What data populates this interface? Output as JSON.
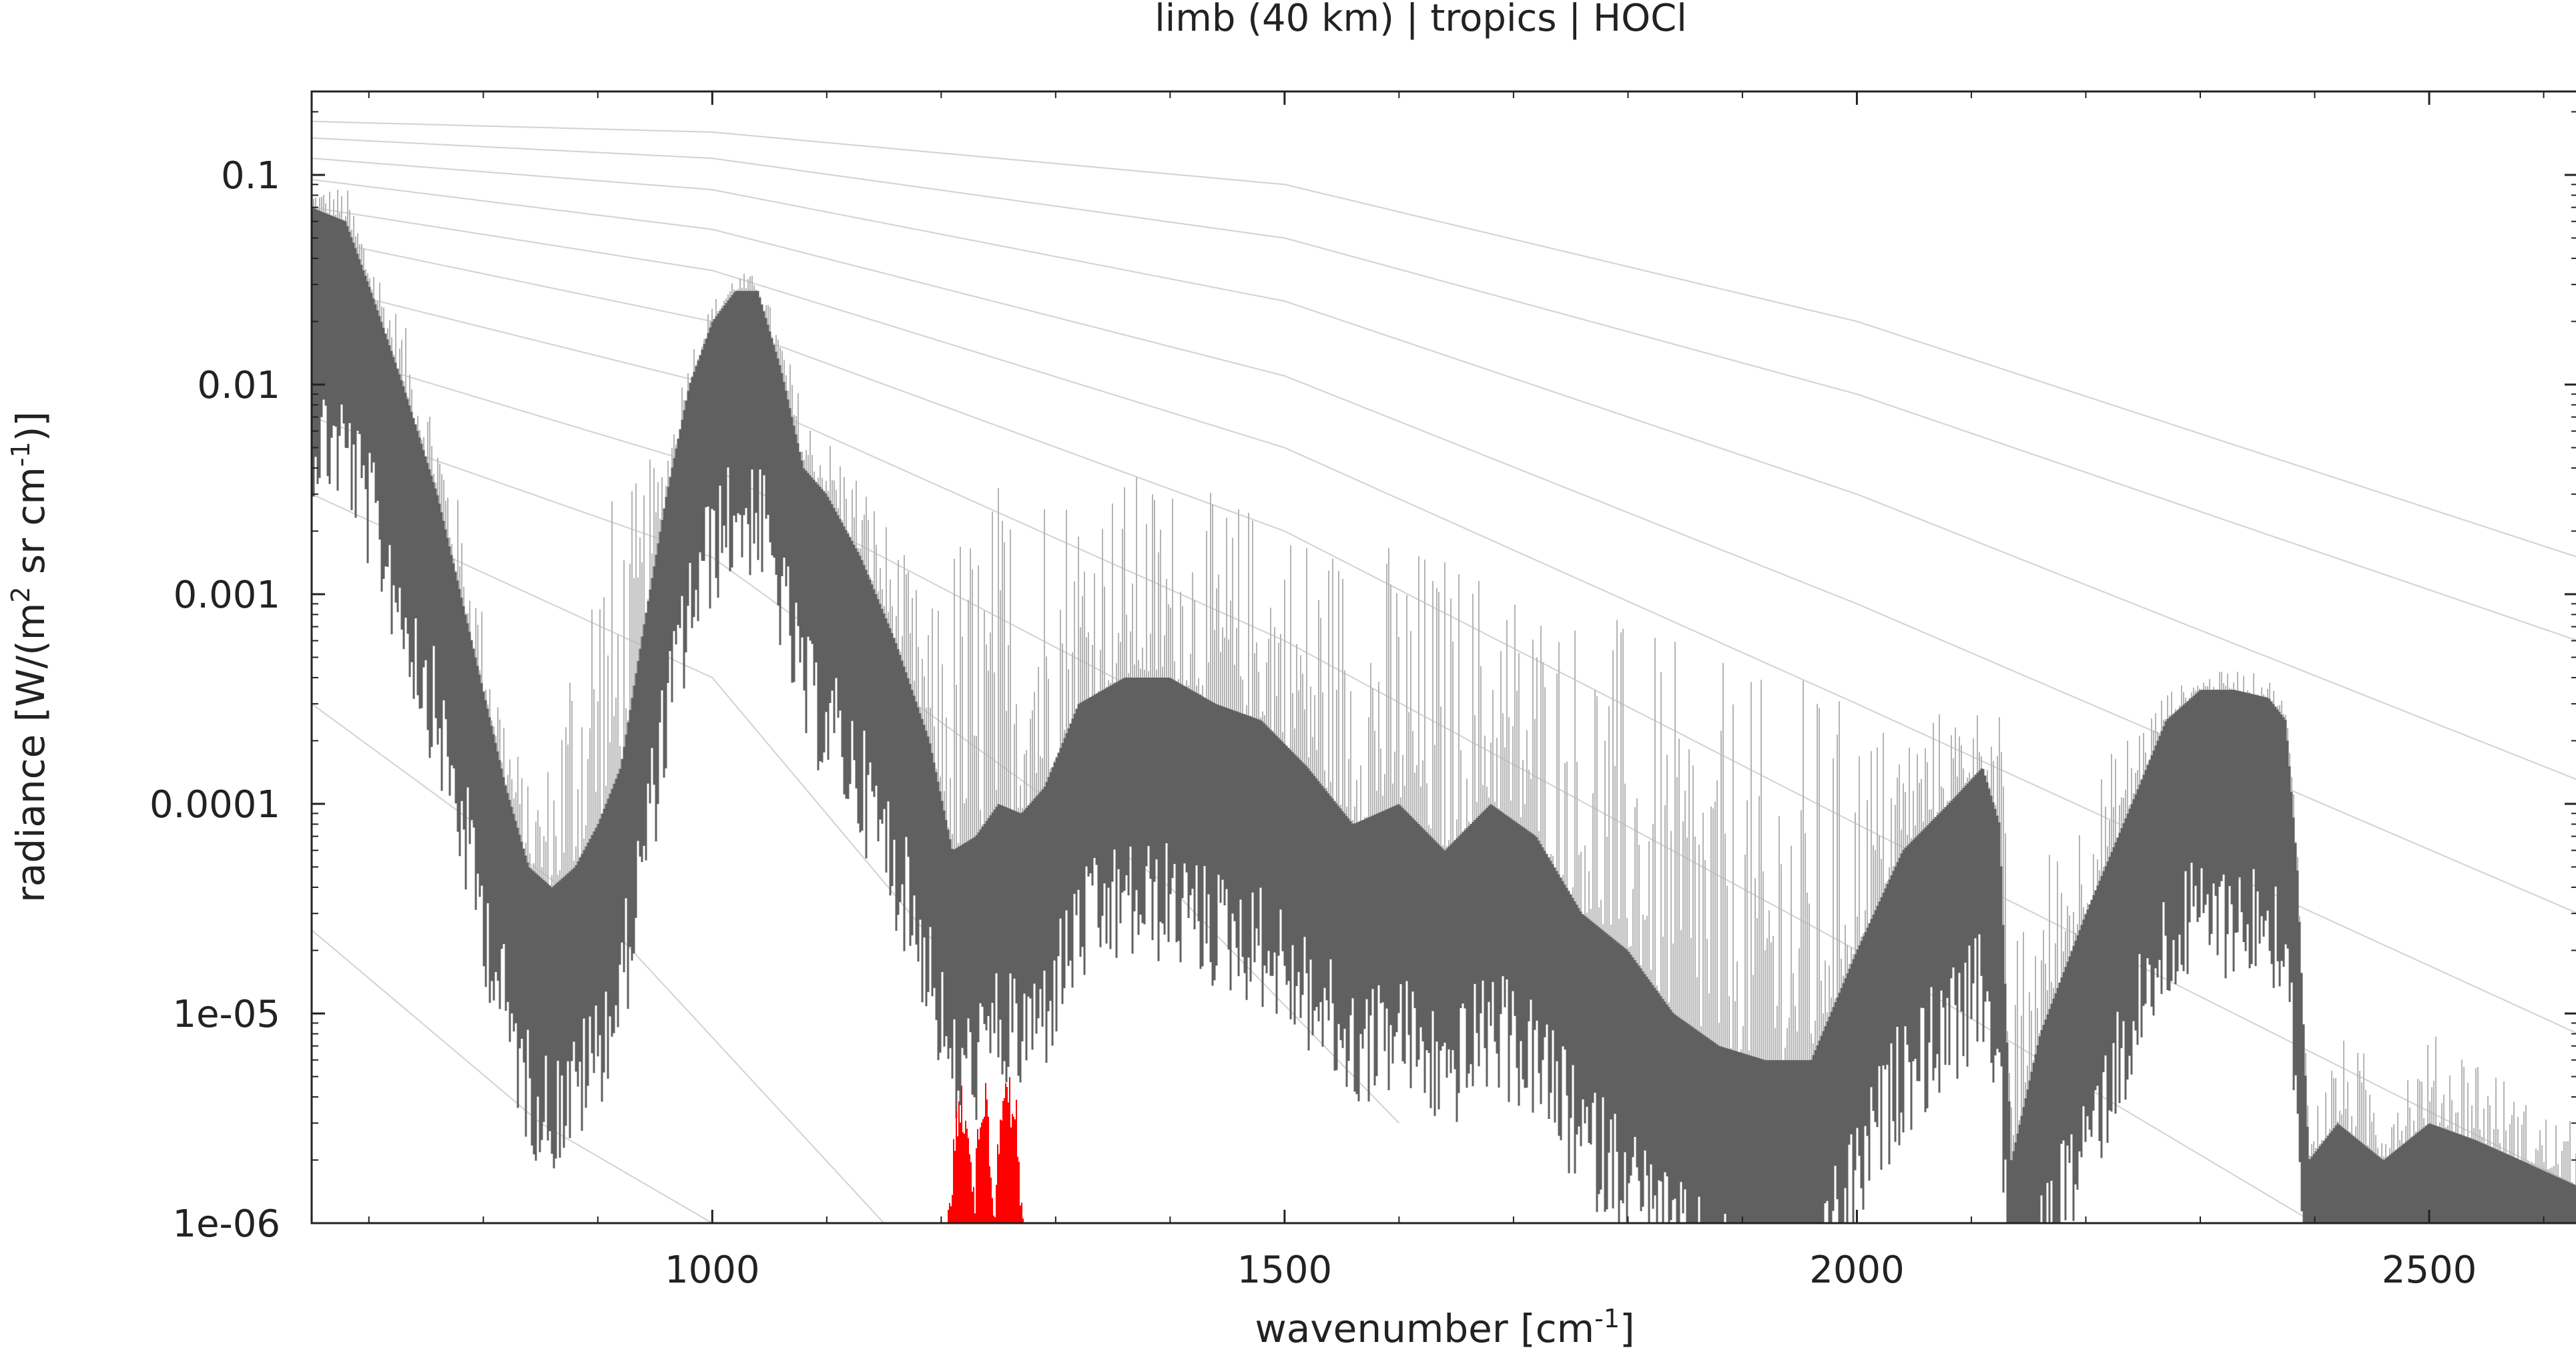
{
  "chart_data": {
    "type": "line",
    "title": "limb (40 km) | tropics | HOCl",
    "xlabel": {
      "base": "wavenumber [cm",
      "sup": "-1",
      "tail": "]"
    },
    "ylabel": {
      "p1": "radiance [W/(m",
      "sup1": "2",
      "p2": " sr cm",
      "sup2": "-1",
      "p3": ")]"
    },
    "xlim": [
      650,
      2630
    ],
    "ylim": [
      1e-06,
      0.25
    ],
    "yscale": "log",
    "grid": false,
    "legend": "none",
    "x_ticks": [
      {
        "value": 1000,
        "label": "1000"
      },
      {
        "value": 1500,
        "label": "1500"
      },
      {
        "value": 2000,
        "label": "2000"
      },
      {
        "value": 2500,
        "label": "2500"
      }
    ],
    "y_ticks": [
      {
        "value": 0.1,
        "label": "0.1"
      },
      {
        "value": 0.01,
        "label": "0.01"
      },
      {
        "value": 0.001,
        "label": "0.001"
      },
      {
        "value": 0.0001,
        "label": "0.0001"
      },
      {
        "value": 1e-05,
        "label": "1e-05"
      },
      {
        "value": 1e-06,
        "label": "1e-06"
      }
    ],
    "colors": {
      "total_upper": "#b4b4b4",
      "total": "#606060",
      "target": "#ff0000",
      "reference": "#d2d2d2"
    },
    "series": [
      {
        "role": "total",
        "x": [
          650,
          680,
          700,
          730,
          760,
          790,
          820,
          840,
          860,
          880,
          900,
          920,
          940,
          960,
          980,
          1000,
          1020,
          1040,
          1060,
          1080,
          1100,
          1130,
          1160,
          1190,
          1210,
          1230,
          1250,
          1270,
          1290,
          1320,
          1360,
          1400,
          1440,
          1480,
          1520,
          1560,
          1600,
          1640,
          1680,
          1720,
          1760,
          1800,
          1840,
          1880,
          1920,
          1960,
          2000,
          2040,
          2080,
          2110,
          2125,
          2135,
          2160,
          2200,
          2240,
          2270,
          2300,
          2330,
          2360,
          2375,
          2385,
          2395,
          2420,
          2460,
          2500,
          2540,
          2580,
          2630
        ],
        "env": [
          0.07,
          0.06,
          0.03,
          0.01,
          0.003,
          0.0006,
          0.00012,
          5e-05,
          4e-05,
          5e-05,
          8e-05,
          0.00015,
          0.0007,
          0.003,
          0.01,
          0.02,
          0.028,
          0.028,
          0.012,
          0.004,
          0.003,
          0.0015,
          0.0006,
          0.0002,
          6e-05,
          7e-05,
          0.0001,
          9e-05,
          0.00012,
          0.0003,
          0.0004,
          0.0004,
          0.0003,
          0.00025,
          0.00015,
          8e-05,
          0.0001,
          6e-05,
          0.0001,
          7e-05,
          3e-05,
          2e-05,
          1e-05,
          7e-06,
          6e-06,
          6e-06,
          2e-05,
          6e-05,
          0.0001,
          0.00015,
          8e-05,
          2e-06,
          8e-06,
          3e-05,
          0.0001,
          0.00025,
          0.00035,
          0.00035,
          0.00032,
          0.00025,
          5e-05,
          2e-06,
          3e-06,
          2e-06,
          3e-06,
          2.5e-06,
          2e-06,
          1.5e-06
        ],
        "env_upper": [
          0.09,
          0.09,
          0.05,
          0.02,
          0.008,
          0.0015,
          0.0003,
          0.00012,
          0.0002,
          0.0015,
          0.004,
          0.003,
          0.004,
          0.006,
          0.015,
          0.025,
          0.035,
          0.033,
          0.018,
          0.008,
          0.006,
          0.004,
          0.002,
          0.0008,
          0.0025,
          0.003,
          0.004,
          0.005,
          0.006,
          0.004,
          0.004,
          0.004,
          0.003,
          0.003,
          0.0025,
          0.002,
          0.002,
          0.0018,
          0.0015,
          0.0012,
          0.001,
          0.0008,
          0.0006,
          0.0005,
          0.0004,
          0.00045,
          0.0003,
          0.00025,
          0.0003,
          0.0003,
          0.0003,
          2e-05,
          6e-05,
          0.00012,
          0.00025,
          0.00035,
          0.0004,
          0.00045,
          0.0004,
          0.0003,
          8e-05,
          3e-06,
          8e-06,
          6e-06,
          8e-06,
          8e-06,
          4e-06,
          3e-06
        ]
      },
      {
        "role": "target",
        "name": "HOCl",
        "x": [
          1205,
          1215,
          1222,
          1228,
          1235,
          1240,
          1246,
          1252,
          1258,
          1266,
          1272
        ],
        "y": [
          1e-06,
          5e-06,
          4.5e-06,
          1.5e-06,
          5e-06,
          5e-06,
          1.5e-06,
          5e-06,
          5.5e-06,
          4e-06,
          1e-06
        ]
      }
    ],
    "reference_curves": [
      {
        "x": [
          650,
          1000,
          1500,
          2000,
          2630
        ],
        "y": [
          0.18,
          0.16,
          0.09,
          0.02,
          0.0015
        ]
      },
      {
        "x": [
          650,
          1000,
          1500,
          2000,
          2630
        ],
        "y": [
          0.15,
          0.12,
          0.05,
          0.009,
          0.0006
        ]
      },
      {
        "x": [
          650,
          1000,
          1500,
          2000,
          2630
        ],
        "y": [
          0.12,
          0.085,
          0.025,
          0.003,
          0.00013
        ]
      },
      {
        "x": [
          650,
          1000,
          1500,
          2000,
          2630
        ],
        "y": [
          0.095,
          0.055,
          0.011,
          0.0009,
          3e-05
        ]
      },
      {
        "x": [
          650,
          1000,
          1500,
          2000,
          2630
        ],
        "y": [
          0.07,
          0.035,
          0.005,
          0.0003,
          8e-06
        ]
      },
      {
        "x": [
          650,
          1000,
          1500,
          2000,
          2630
        ],
        "y": [
          0.05,
          0.02,
          0.002,
          8e-05,
          1.5e-06
        ]
      },
      {
        "x": [
          650,
          1000,
          1500,
          2000,
          2400
        ],
        "y": [
          0.03,
          0.01,
          0.0006,
          2e-05,
          1e-06
        ]
      },
      {
        "x": [
          650,
          1000,
          1500,
          1900
        ],
        "y": [
          0.015,
          0.004,
          0.00015,
          2e-06
        ]
      },
      {
        "x": [
          650,
          1000,
          1400,
          1600
        ],
        "y": [
          0.007,
          0.0015,
          4e-05,
          3e-06
        ]
      },
      {
        "x": [
          650,
          1000,
          1200
        ],
        "y": [
          0.003,
          0.0004,
          2e-05
        ]
      },
      {
        "x": [
          650,
          900,
          1150
        ],
        "y": [
          0.0003,
          3e-05,
          1e-06
        ]
      },
      {
        "x": [
          650,
          850,
          1000
        ],
        "y": [
          2.5e-05,
          3e-06,
          1e-06
        ]
      }
    ]
  }
}
